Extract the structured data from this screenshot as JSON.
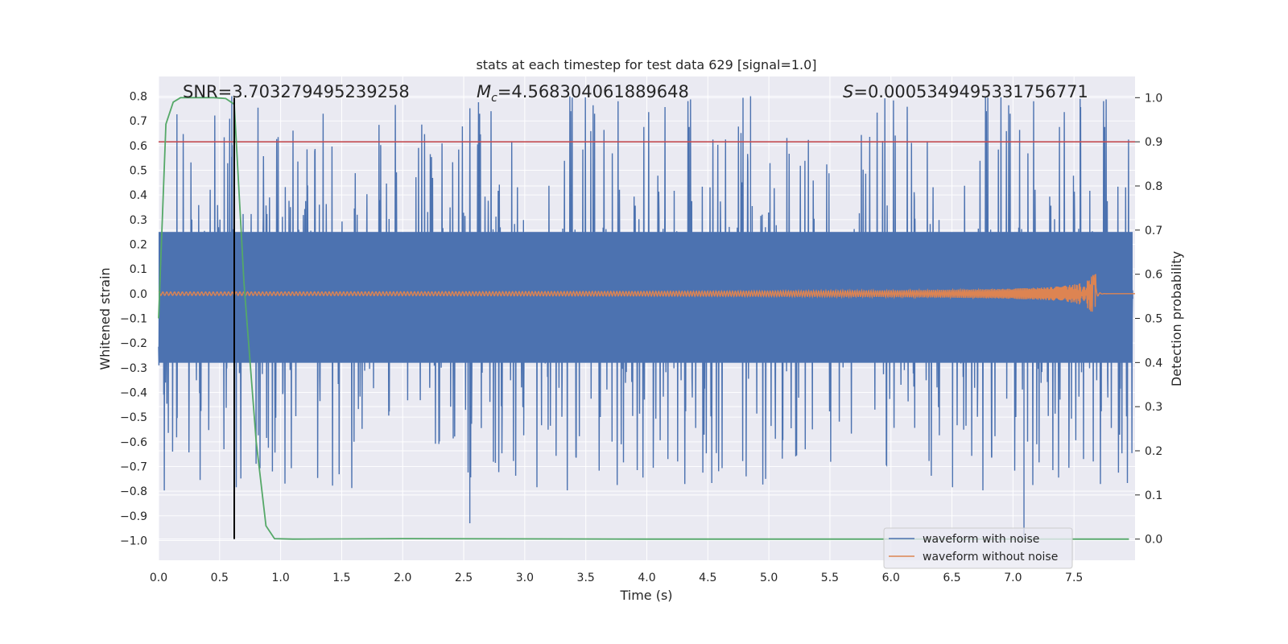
{
  "chart_data": {
    "type": "line",
    "title": "stats at each timestep for test data 629 [signal=1.0]",
    "xlabel": "Time (s)",
    "ylabel": "Whitened strain",
    "y2label": "Detection probability",
    "xlim": [
      0.0,
      8.0
    ],
    "ylim": [
      -1.08,
      0.88
    ],
    "y2lim": [
      -0.048,
      1.048
    ],
    "xticks": [
      "0.0",
      "0.5",
      "1.0",
      "1.5",
      "2.0",
      "2.5",
      "3.0",
      "3.5",
      "4.0",
      "4.5",
      "5.0",
      "5.5",
      "6.0",
      "6.5",
      "7.0",
      "7.5"
    ],
    "xtick_values": [
      0.0,
      0.5,
      1.0,
      1.5,
      2.0,
      2.5,
      3.0,
      3.5,
      4.0,
      4.5,
      5.0,
      5.5,
      6.0,
      6.5,
      7.0,
      7.5
    ],
    "yticks": [
      "0.8",
      "0.7",
      "0.6",
      "0.5",
      "0.4",
      "0.3",
      "0.2",
      "0.1",
      "0.0",
      "−0.1",
      "−0.2",
      "−0.3",
      "−0.4",
      "−0.5",
      "−0.6",
      "−0.7",
      "−0.8",
      "−0.9",
      "−1.0"
    ],
    "ytick_values": [
      0.8,
      0.7,
      0.6,
      0.5,
      0.4,
      0.3,
      0.2,
      0.1,
      0.0,
      -0.1,
      -0.2,
      -0.3,
      -0.4,
      -0.5,
      -0.6,
      -0.7,
      -0.8,
      -0.9,
      -1.0
    ],
    "y2ticks": [
      "1.0",
      "0.9",
      "0.8",
      "0.7",
      "0.6",
      "0.5",
      "0.4",
      "0.3",
      "0.2",
      "0.1",
      "0.0"
    ],
    "y2tick_values": [
      1.0,
      0.9,
      0.8,
      0.7,
      0.6,
      0.5,
      0.4,
      0.3,
      0.2,
      0.1,
      0.0
    ],
    "grid": true,
    "legend_position": "lower-right",
    "annotations": {
      "snr": "SNR=3.703279495239258",
      "mc_symbol": "M",
      "mc_sub": "c",
      "mc_value": "=4.568304061889648",
      "s_symbol": "S",
      "s_value": "=0.0005349495331756771"
    },
    "series": [
      {
        "name": "waveform with noise",
        "color": "#4c72b0",
        "noise_envelope_typical": 0.35,
        "peaks_max": 0.8,
        "peaks_min": -1.0
      },
      {
        "name": "waveform without noise",
        "color": "#dd8452",
        "chirp_start_amplitude": 0.007,
        "merger_time": 7.68,
        "merger_amplitude": 0.08
      },
      {
        "color": "#55a868",
        "axis": "y2",
        "x": [
          0.0,
          0.06,
          0.12,
          0.18,
          0.3,
          0.45,
          0.55,
          0.62,
          0.7,
          0.8,
          0.88,
          0.95,
          1.1,
          2.0,
          4.0,
          6.0,
          7.0,
          7.95
        ],
        "values": [
          0.5,
          0.94,
          0.99,
          1.0,
          1.0,
          1.0,
          0.998,
          0.985,
          0.58,
          0.22,
          0.03,
          0.001,
          0.0,
          0.001,
          0.0,
          0.0,
          0.0,
          0.0
        ]
      }
    ],
    "threshold_line": {
      "y2": 0.9,
      "color": "#c44e52"
    },
    "marker_line": {
      "x": 0.62,
      "y2_top": 1.0,
      "y2_bottom": 0.0,
      "color": "#000000"
    }
  }
}
